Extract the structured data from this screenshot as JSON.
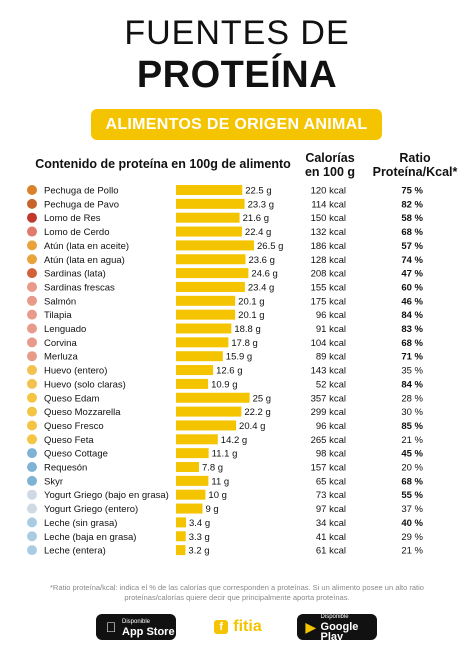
{
  "header": {
    "title_line1": "FUENTES DE",
    "title_line2": "PROTEÍNA",
    "banner": "ALIMENTOS DE ORIGEN ANIMAL"
  },
  "columns": {
    "main": "Contenido de proteína en 100g de alimento",
    "calories_line1": "Calorías",
    "calories_line2": "en 100 g",
    "ratio_line1": "Ratio",
    "ratio_line2": "Proteína/Kcal*"
  },
  "colors": {
    "accent": "#f5c400",
    "text": "#111111",
    "muted": "#888888"
  },
  "chart_data": {
    "type": "bar",
    "orientation": "horizontal",
    "xlim": [
      0,
      26.5
    ],
    "categories": [
      "Pechuga de Pollo",
      "Pechuga de Pavo",
      "Lomo de Res",
      "Lomo de Cerdo",
      "Atún (lata en aceite)",
      "Atún (lata en agua)",
      "Sardinas (lata)",
      "Sardinas frescas",
      "Salmón",
      "Tilapia",
      "Lenguado",
      "Corvina",
      "Merluza",
      "Huevo (entero)",
      "Huevo (solo claras)",
      "Queso Edam",
      "Queso Mozzarella",
      "Queso Fresco",
      "Queso Feta",
      "Queso Cottage",
      "Requesón",
      "Skyr",
      "Yogurt Griego (bajo en grasa)",
      "Yogurt Griego (entero)",
      "Leche (sin grasa)",
      "Leche (baja en grasa)",
      "Leche (entera)"
    ],
    "icons": [
      "chicken-leg-icon",
      "turkey-icon",
      "steak-icon",
      "pork-icon",
      "tuna-can-icon",
      "tuna-can-icon",
      "sardine-can-icon",
      "fish-icon",
      "fish-icon",
      "fish-icon",
      "fish-icon",
      "fish-icon",
      "fish-icon",
      "egg-icon",
      "egg-icon",
      "cheese-icon",
      "cheese-icon",
      "cheese-icon",
      "cheese-icon",
      "bowl-icon",
      "bowl-icon",
      "bowl-icon",
      "yogurt-icon",
      "yogurt-icon",
      "milk-glass-icon",
      "milk-glass-icon",
      "milk-glass-icon"
    ],
    "values": [
      22.5,
      23.3,
      21.6,
      22.4,
      26.5,
      23.6,
      24.6,
      23.4,
      20.1,
      20.1,
      18.8,
      17.8,
      15.9,
      12.6,
      10.9,
      25,
      22.2,
      20.4,
      14.2,
      11.1,
      7.8,
      11,
      10,
      9,
      3.4,
      3.3,
      3.2
    ],
    "value_labels": [
      "22.5 g",
      "23.3 g",
      "21.6 g",
      "22.4 g",
      "26.5 g",
      "23.6 g",
      "24.6 g",
      "23.4 g",
      "20.1 g",
      "20.1 g",
      "18.8 g",
      "17.8 g",
      "15.9 g",
      "12.6 g",
      "10.9 g",
      "25 g",
      "22.2 g",
      "20.4 g",
      "14.2 g",
      "11.1 g",
      "7.8 g",
      "11 g",
      "10 g",
      "9 g",
      "3.4 g",
      "3.3 g",
      "3.2 g"
    ],
    "calories": [
      "120 kcal",
      "114 kcal",
      "150 kcal",
      "132 kcal",
      "186 kcal",
      "128 kcal",
      "208 kcal",
      "155 kcal",
      "175 kcal",
      "96 kcal",
      "91 kcal",
      "104 kcal",
      "89 kcal",
      "143 kcal",
      "52 kcal",
      "357 kcal",
      "299 kcal",
      "96 kcal",
      "265 kcal",
      "98 kcal",
      "157 kcal",
      "65 kcal",
      "73 kcal",
      "97 kcal",
      "34 kcal",
      "41 kcal",
      "61 kcal"
    ],
    "ratios": [
      "75 %",
      "82 %",
      "58 %",
      "68 %",
      "57 %",
      "74 %",
      "47 %",
      "60 %",
      "46 %",
      "84 %",
      "83 %",
      "68 %",
      "71 %",
      "35 %",
      "84 %",
      "28 %",
      "30 %",
      "85 %",
      "21 %",
      "45 %",
      "20 %",
      "68 %",
      "55 %",
      "37 %",
      "40 %",
      "29 %",
      "21 %"
    ],
    "ratio_bold": [
      true,
      true,
      true,
      true,
      true,
      true,
      true,
      true,
      true,
      true,
      true,
      true,
      true,
      false,
      true,
      false,
      false,
      true,
      false,
      true,
      false,
      true,
      true,
      false,
      true,
      false,
      false
    ]
  },
  "footer": {
    "note_line1": "*Ratio proteína/kcal: indica el % de las calorías que corresponden a proteínas. Si un alimento posee un alto ratio",
    "note_line2": "proteínas/calorías quiere decir que principalmente aporta proteínas.",
    "appstore_small": "Disponible",
    "appstore_big": "App Store",
    "brand": "fitia",
    "gplay_small": "Disponible",
    "gplay_big": "Google Play"
  }
}
